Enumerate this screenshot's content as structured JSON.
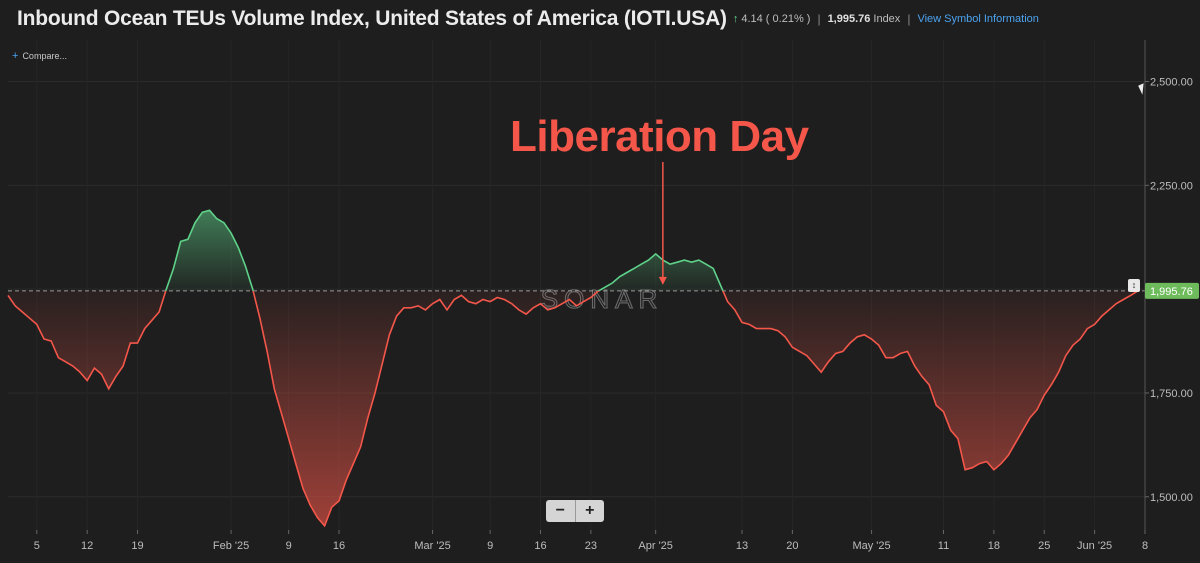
{
  "header": {
    "title": "Inbound Ocean TEUs Volume Index, United States of America (IOTI.USA)",
    "change": "4.14 ( 0.21% )",
    "last_value": "1,995.76",
    "unit": "Index",
    "info_link": "View Symbol Information"
  },
  "compare_label": "Compare...",
  "annotation": "Liberation Day",
  "watermark": "SONAR",
  "zoom": {
    "out": "−",
    "in": "+"
  },
  "colors": {
    "background": "#1e1e1e",
    "above": "#5fd28a",
    "below": "#f4574a",
    "annotation": "#f4574a",
    "price_label": "#6dbb5a"
  },
  "chart_data": {
    "type": "area",
    "baseline": 1995.76,
    "last_label": "1,995.76",
    "ylim": [
      1420,
      2600
    ],
    "yticks": [
      1500,
      1750,
      2000,
      2250,
      2500
    ],
    "ytick_labels": [
      "1,500.00",
      "1,750.00",
      "",
      "2,250.00",
      "2,500.00"
    ],
    "xlim": [
      "2025-01-01",
      "2025-06-08"
    ],
    "xticks": [
      {
        "date": "2025-01-05",
        "label": "5"
      },
      {
        "date": "2025-01-12",
        "label": "12"
      },
      {
        "date": "2025-01-19",
        "label": "19"
      },
      {
        "date": "2025-02-01",
        "label": "Feb '25"
      },
      {
        "date": "2025-02-09",
        "label": "9"
      },
      {
        "date": "2025-02-16",
        "label": "16"
      },
      {
        "date": "2025-03-01",
        "label": "Mar '25"
      },
      {
        "date": "2025-03-09",
        "label": "9"
      },
      {
        "date": "2025-03-16",
        "label": "16"
      },
      {
        "date": "2025-03-23",
        "label": "23"
      },
      {
        "date": "2025-04-01",
        "label": "Apr '25"
      },
      {
        "date": "2025-04-13",
        "label": "13"
      },
      {
        "date": "2025-04-20",
        "label": "20"
      },
      {
        "date": "2025-05-01",
        "label": "May '25"
      },
      {
        "date": "2025-05-11",
        "label": "11"
      },
      {
        "date": "2025-05-18",
        "label": "18"
      },
      {
        "date": "2025-05-25",
        "label": "25"
      },
      {
        "date": "2025-06-01",
        "label": "Jun '25"
      },
      {
        "date": "2025-06-08",
        "label": "8"
      }
    ],
    "annotation_date": "2025-04-02",
    "series": [
      {
        "points": [
          [
            "2025-01-01",
            1985
          ],
          [
            "2025-01-02",
            1960
          ],
          [
            "2025-01-03",
            1945
          ],
          [
            "2025-01-04",
            1930
          ],
          [
            "2025-01-05",
            1915
          ],
          [
            "2025-01-06",
            1880
          ],
          [
            "2025-01-07",
            1875
          ],
          [
            "2025-01-08",
            1835
          ],
          [
            "2025-01-09",
            1825
          ],
          [
            "2025-01-10",
            1815
          ],
          [
            "2025-01-11",
            1800
          ],
          [
            "2025-01-12",
            1780
          ],
          [
            "2025-01-13",
            1810
          ],
          [
            "2025-01-14",
            1795
          ],
          [
            "2025-01-15",
            1760
          ],
          [
            "2025-01-16",
            1790
          ],
          [
            "2025-01-17",
            1815
          ],
          [
            "2025-01-18",
            1870
          ],
          [
            "2025-01-19",
            1870
          ],
          [
            "2025-01-20",
            1905
          ],
          [
            "2025-01-21",
            1925
          ],
          [
            "2025-01-22",
            1945
          ],
          [
            "2025-01-23",
            2000
          ],
          [
            "2025-01-24",
            2050
          ],
          [
            "2025-01-25",
            2115
          ],
          [
            "2025-01-26",
            2120
          ],
          [
            "2025-01-27",
            2160
          ],
          [
            "2025-01-28",
            2185
          ],
          [
            "2025-01-29",
            2190
          ],
          [
            "2025-01-30",
            2170
          ],
          [
            "2025-01-31",
            2160
          ],
          [
            "2025-02-01",
            2135
          ],
          [
            "2025-02-02",
            2100
          ],
          [
            "2025-02-03",
            2055
          ],
          [
            "2025-02-04",
            2000
          ],
          [
            "2025-02-05",
            1930
          ],
          [
            "2025-02-06",
            1850
          ],
          [
            "2025-02-07",
            1760
          ],
          [
            "2025-02-08",
            1700
          ],
          [
            "2025-02-09",
            1640
          ],
          [
            "2025-02-10",
            1580
          ],
          [
            "2025-02-11",
            1520
          ],
          [
            "2025-02-12",
            1480
          ],
          [
            "2025-02-13",
            1450
          ],
          [
            "2025-02-14",
            1430
          ],
          [
            "2025-02-15",
            1475
          ],
          [
            "2025-02-16",
            1490
          ],
          [
            "2025-02-17",
            1540
          ],
          [
            "2025-02-18",
            1580
          ],
          [
            "2025-02-19",
            1620
          ],
          [
            "2025-02-20",
            1690
          ],
          [
            "2025-02-21",
            1750
          ],
          [
            "2025-02-22",
            1820
          ],
          [
            "2025-02-23",
            1890
          ],
          [
            "2025-02-24",
            1935
          ],
          [
            "2025-02-25",
            1955
          ],
          [
            "2025-02-26",
            1955
          ],
          [
            "2025-02-27",
            1960
          ],
          [
            "2025-02-28",
            1950
          ],
          [
            "2025-03-01",
            1965
          ],
          [
            "2025-03-02",
            1975
          ],
          [
            "2025-03-03",
            1950
          ],
          [
            "2025-03-04",
            1975
          ],
          [
            "2025-03-05",
            1985
          ],
          [
            "2025-03-06",
            1970
          ],
          [
            "2025-03-07",
            1965
          ],
          [
            "2025-03-08",
            1975
          ],
          [
            "2025-03-09",
            1970
          ],
          [
            "2025-03-10",
            1980
          ],
          [
            "2025-03-11",
            1975
          ],
          [
            "2025-03-12",
            1965
          ],
          [
            "2025-03-13",
            1950
          ],
          [
            "2025-03-14",
            1940
          ],
          [
            "2025-03-15",
            1955
          ],
          [
            "2025-03-16",
            1965
          ],
          [
            "2025-03-17",
            1950
          ],
          [
            "2025-03-18",
            1955
          ],
          [
            "2025-03-19",
            1965
          ],
          [
            "2025-03-20",
            1975
          ],
          [
            "2025-03-21",
            1960
          ],
          [
            "2025-03-22",
            1970
          ],
          [
            "2025-03-23",
            1980
          ],
          [
            "2025-03-24",
            1995
          ],
          [
            "2025-03-25",
            2005
          ],
          [
            "2025-03-26",
            2015
          ],
          [
            "2025-03-27",
            2030
          ],
          [
            "2025-03-28",
            2040
          ],
          [
            "2025-03-29",
            2050
          ],
          [
            "2025-03-30",
            2060
          ],
          [
            "2025-03-31",
            2070
          ],
          [
            "2025-04-01",
            2085
          ],
          [
            "2025-04-02",
            2070
          ],
          [
            "2025-04-03",
            2060
          ],
          [
            "2025-04-04",
            2065
          ],
          [
            "2025-04-05",
            2070
          ],
          [
            "2025-04-06",
            2065
          ],
          [
            "2025-04-07",
            2070
          ],
          [
            "2025-04-08",
            2060
          ],
          [
            "2025-04-09",
            2050
          ],
          [
            "2025-04-10",
            2010
          ],
          [
            "2025-04-11",
            1970
          ],
          [
            "2025-04-12",
            1950
          ],
          [
            "2025-04-13",
            1920
          ],
          [
            "2025-04-14",
            1915
          ],
          [
            "2025-04-15",
            1905
          ],
          [
            "2025-04-16",
            1905
          ],
          [
            "2025-04-17",
            1905
          ],
          [
            "2025-04-18",
            1900
          ],
          [
            "2025-04-19",
            1885
          ],
          [
            "2025-04-20",
            1860
          ],
          [
            "2025-04-21",
            1850
          ],
          [
            "2025-04-22",
            1840
          ],
          [
            "2025-04-23",
            1820
          ],
          [
            "2025-04-24",
            1800
          ],
          [
            "2025-04-25",
            1825
          ],
          [
            "2025-04-26",
            1845
          ],
          [
            "2025-04-27",
            1850
          ],
          [
            "2025-04-28",
            1870
          ],
          [
            "2025-04-29",
            1885
          ],
          [
            "2025-04-30",
            1890
          ],
          [
            "2025-05-01",
            1880
          ],
          [
            "2025-05-02",
            1865
          ],
          [
            "2025-05-03",
            1835
          ],
          [
            "2025-05-04",
            1835
          ],
          [
            "2025-05-05",
            1845
          ],
          [
            "2025-05-06",
            1850
          ],
          [
            "2025-05-07",
            1815
          ],
          [
            "2025-05-08",
            1790
          ],
          [
            "2025-05-09",
            1770
          ],
          [
            "2025-05-10",
            1720
          ],
          [
            "2025-05-11",
            1705
          ],
          [
            "2025-05-12",
            1660
          ],
          [
            "2025-05-13",
            1640
          ],
          [
            "2025-05-14",
            1565
          ],
          [
            "2025-05-15",
            1570
          ],
          [
            "2025-05-16",
            1580
          ],
          [
            "2025-05-17",
            1585
          ],
          [
            "2025-05-18",
            1565
          ],
          [
            "2025-05-19",
            1580
          ],
          [
            "2025-05-20",
            1600
          ],
          [
            "2025-05-21",
            1630
          ],
          [
            "2025-05-22",
            1660
          ],
          [
            "2025-05-23",
            1690
          ],
          [
            "2025-05-24",
            1710
          ],
          [
            "2025-05-25",
            1745
          ],
          [
            "2025-05-26",
            1770
          ],
          [
            "2025-05-27",
            1800
          ],
          [
            "2025-05-28",
            1840
          ],
          [
            "2025-05-29",
            1865
          ],
          [
            "2025-05-30",
            1880
          ],
          [
            "2025-05-31",
            1905
          ],
          [
            "2025-06-01",
            1915
          ],
          [
            "2025-06-02",
            1935
          ],
          [
            "2025-06-03",
            1950
          ],
          [
            "2025-06-04",
            1965
          ],
          [
            "2025-06-05",
            1975
          ],
          [
            "2025-06-06",
            1985
          ],
          [
            "2025-06-07",
            1995.76
          ]
        ]
      }
    ]
  }
}
